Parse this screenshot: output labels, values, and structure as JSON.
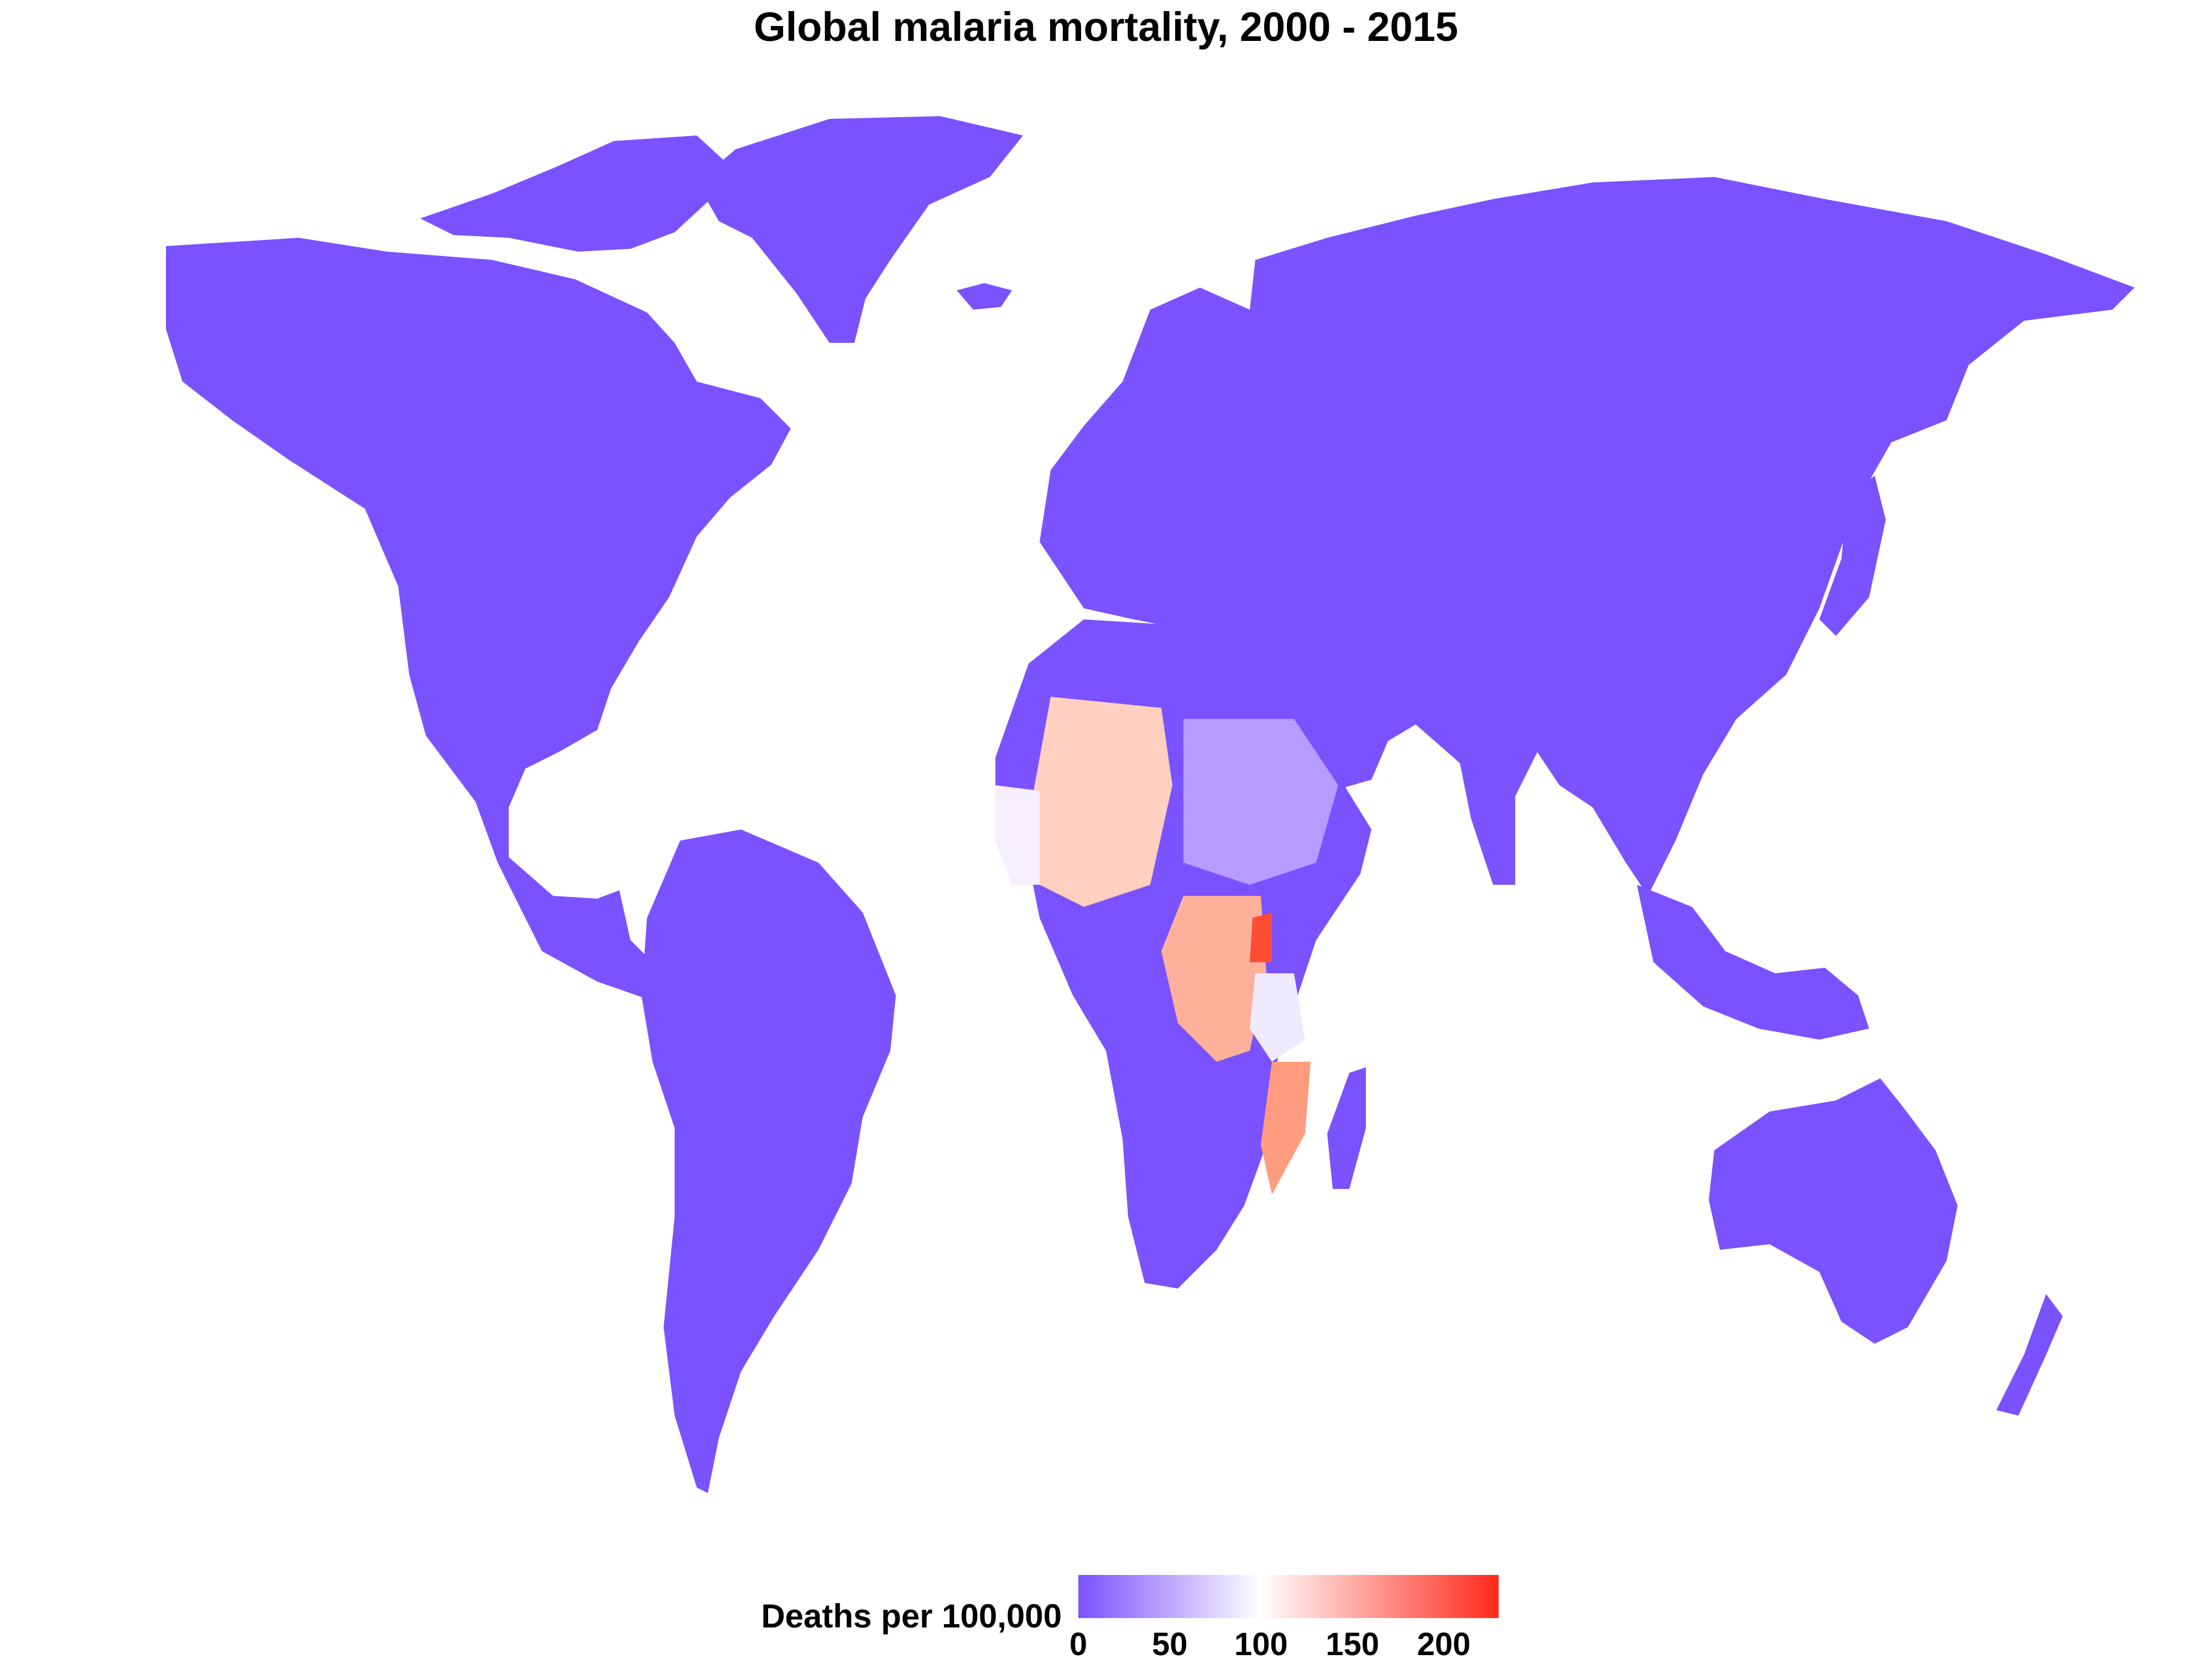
{
  "title": "Global malaria mortality, 2000 - 2015",
  "legend": {
    "title": "Deaths per 100,000",
    "ticks": [
      "0",
      "50",
      "100",
      "150",
      "200"
    ],
    "tick_values": [
      0,
      50,
      100,
      150,
      200
    ],
    "range": [
      0,
      230
    ],
    "colors": {
      "low": "#7b52ff",
      "mid": "#ffffff",
      "high": "#ff2a1a"
    }
  },
  "map": {
    "projection": "world choropleth",
    "base_color": "#7b52ff",
    "background": "#ffffff"
  }
}
